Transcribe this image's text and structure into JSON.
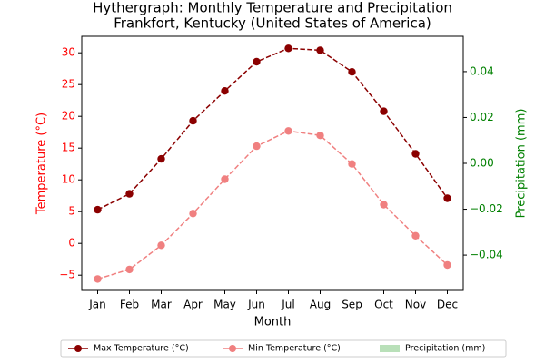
{
  "chart_data": {
    "type": "line",
    "title": "Hythergraph: Monthly Temperature and Precipitation",
    "subtitle": "Frankfort, Kentucky (United States of America)",
    "x_label": "Month",
    "y_label": "Temperature (°C)",
    "y2_label": "Precipitation (mm)",
    "categories": [
      "Jan",
      "Feb",
      "Mar",
      "Apr",
      "May",
      "Jun",
      "Jul",
      "Aug",
      "Sep",
      "Oct",
      "Nov",
      "Dec"
    ],
    "series": [
      {
        "name": "Max Temperature (°C)",
        "color": "#8b0000",
        "dashed": true,
        "marker": true,
        "values": [
          5.3,
          7.8,
          13.3,
          19.3,
          24.0,
          28.6,
          30.7,
          30.4,
          27.0,
          20.8,
          14.1,
          7.1
        ]
      },
      {
        "name": "Min Temperature (°C)",
        "color": "#f08080",
        "dashed": true,
        "marker": true,
        "values": [
          -5.6,
          -4.1,
          -0.3,
          4.7,
          10.1,
          15.3,
          17.7,
          17.0,
          12.5,
          6.1,
          1.2,
          -3.4
        ]
      },
      {
        "name": "Precipitation (mm)",
        "color": "#a8d8a8",
        "axis": "y2",
        "kind": "bar",
        "values": [
          0,
          0,
          0,
          0,
          0,
          0,
          0,
          0,
          0,
          0,
          0,
          0
        ]
      }
    ],
    "ylim": [
      -7.4,
      32.6
    ],
    "yticks": [
      {
        "value": -5,
        "label": "−5"
      },
      0,
      5,
      10,
      15,
      20,
      25,
      30
    ],
    "y_color": "#ff0000",
    "y2lim": [
      -0.0554,
      0.0554
    ],
    "y2ticks": [
      {
        "value": -0.04,
        "label": "−0.04"
      },
      {
        "value": -0.02,
        "label": "−0.02"
      },
      {
        "value": 0,
        "label": "0.00"
      },
      0.02,
      0.04
    ],
    "y2_color": "#008000",
    "legend": "bottom",
    "grid": false
  }
}
